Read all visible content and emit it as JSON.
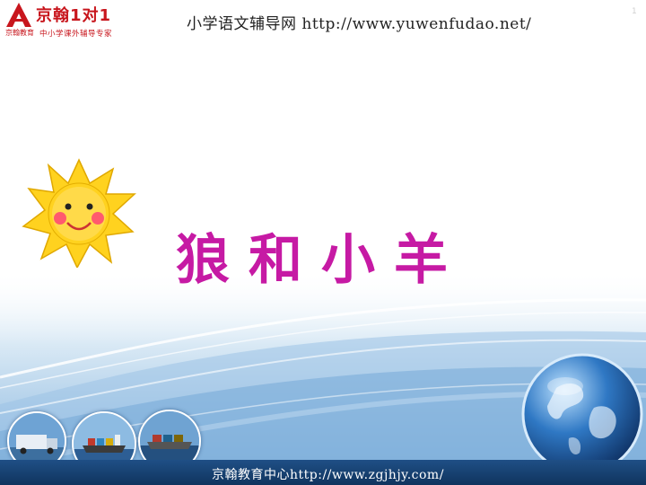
{
  "header": {
    "logo_main": "京翰1对1",
    "logo_tagline_left": "京翰教育",
    "logo_tagline": "中小学课外辅导专家",
    "site_title": "小学语文辅导网 http://www.yuwenfudao.net/",
    "page_marker": "1"
  },
  "slide": {
    "title": "狼和小羊"
  },
  "footer": {
    "text": "京翰教育中心http://www.zgjhjy.com/"
  },
  "images": {
    "sun": "smiling-sun-clipart",
    "thumbnails": [
      "truck-photo",
      "cargo-ship-photo",
      "container-ship-photo"
    ],
    "globe": "earth-globe"
  },
  "colors": {
    "title": "#c61aa4",
    "brand_red": "#c8161d",
    "footer_bar": "#1a4677",
    "sun_yellow": "#ffd21f"
  }
}
